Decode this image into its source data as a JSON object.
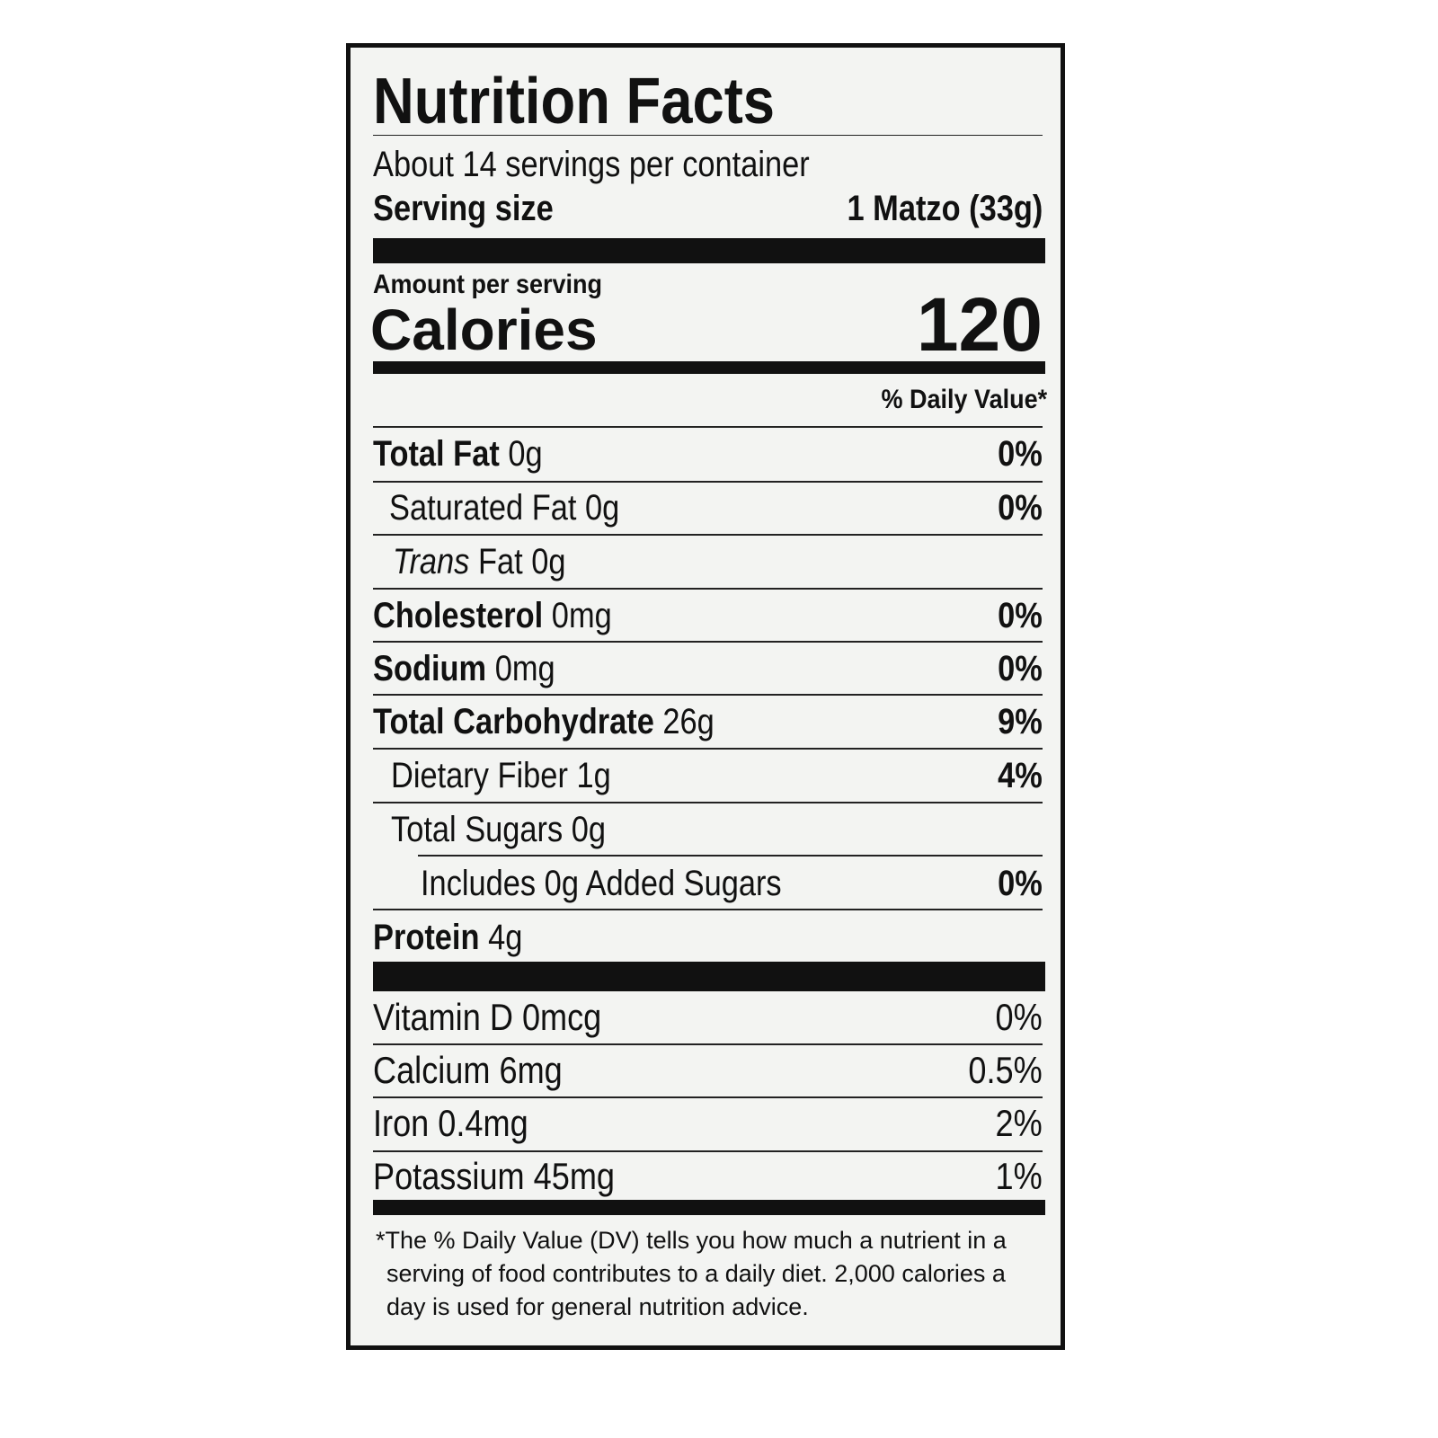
{
  "title": "Nutrition Facts",
  "servings_per_container": "About 14 servings per container",
  "serving_size": {
    "label": "Serving size",
    "value": "1 Matzo (33g)"
  },
  "amount_per_serving": "Amount per serving",
  "calories": {
    "label": "Calories",
    "value": "120"
  },
  "daily_value_header": "% Daily Value*",
  "nutrients": [
    {
      "name": "Total Fat",
      "amount": "0g",
      "dv": "0%"
    },
    {
      "name": "Saturated Fat",
      "amount": "0g",
      "dv": "0%"
    },
    {
      "name": "Trans",
      "amount": "Fat 0g"
    },
    {
      "name": "Cholesterol",
      "amount": "0mg",
      "dv": "0%"
    },
    {
      "name": "Sodium",
      "amount": "0mg",
      "dv": "0%"
    },
    {
      "name": "Total Carbohydrate",
      "amount": "26g",
      "dv": "9%"
    },
    {
      "name": "Dietary Fiber",
      "amount": "1g",
      "dv": "4%"
    },
    {
      "name": "Total Sugars",
      "amount": "0g"
    },
    {
      "name": "Includes 0g Added Sugars",
      "dv": "0%"
    },
    {
      "name": "Protein",
      "amount": "4g"
    }
  ],
  "vitamins": [
    {
      "name": "Vitamin D 0mcg",
      "dv": "0%"
    },
    {
      "name": "Calcium 6mg",
      "dv": "0.5%"
    },
    {
      "name": "Iron 0.4mg",
      "dv": "2%"
    },
    {
      "name": "Potassium 45mg",
      "dv": "1%"
    }
  ],
  "footnote": "*The % Daily Value (DV) tells you how much a nutrient in a serving of food contributes to a daily diet. 2,000 calories a day is used for general nutrition advice."
}
